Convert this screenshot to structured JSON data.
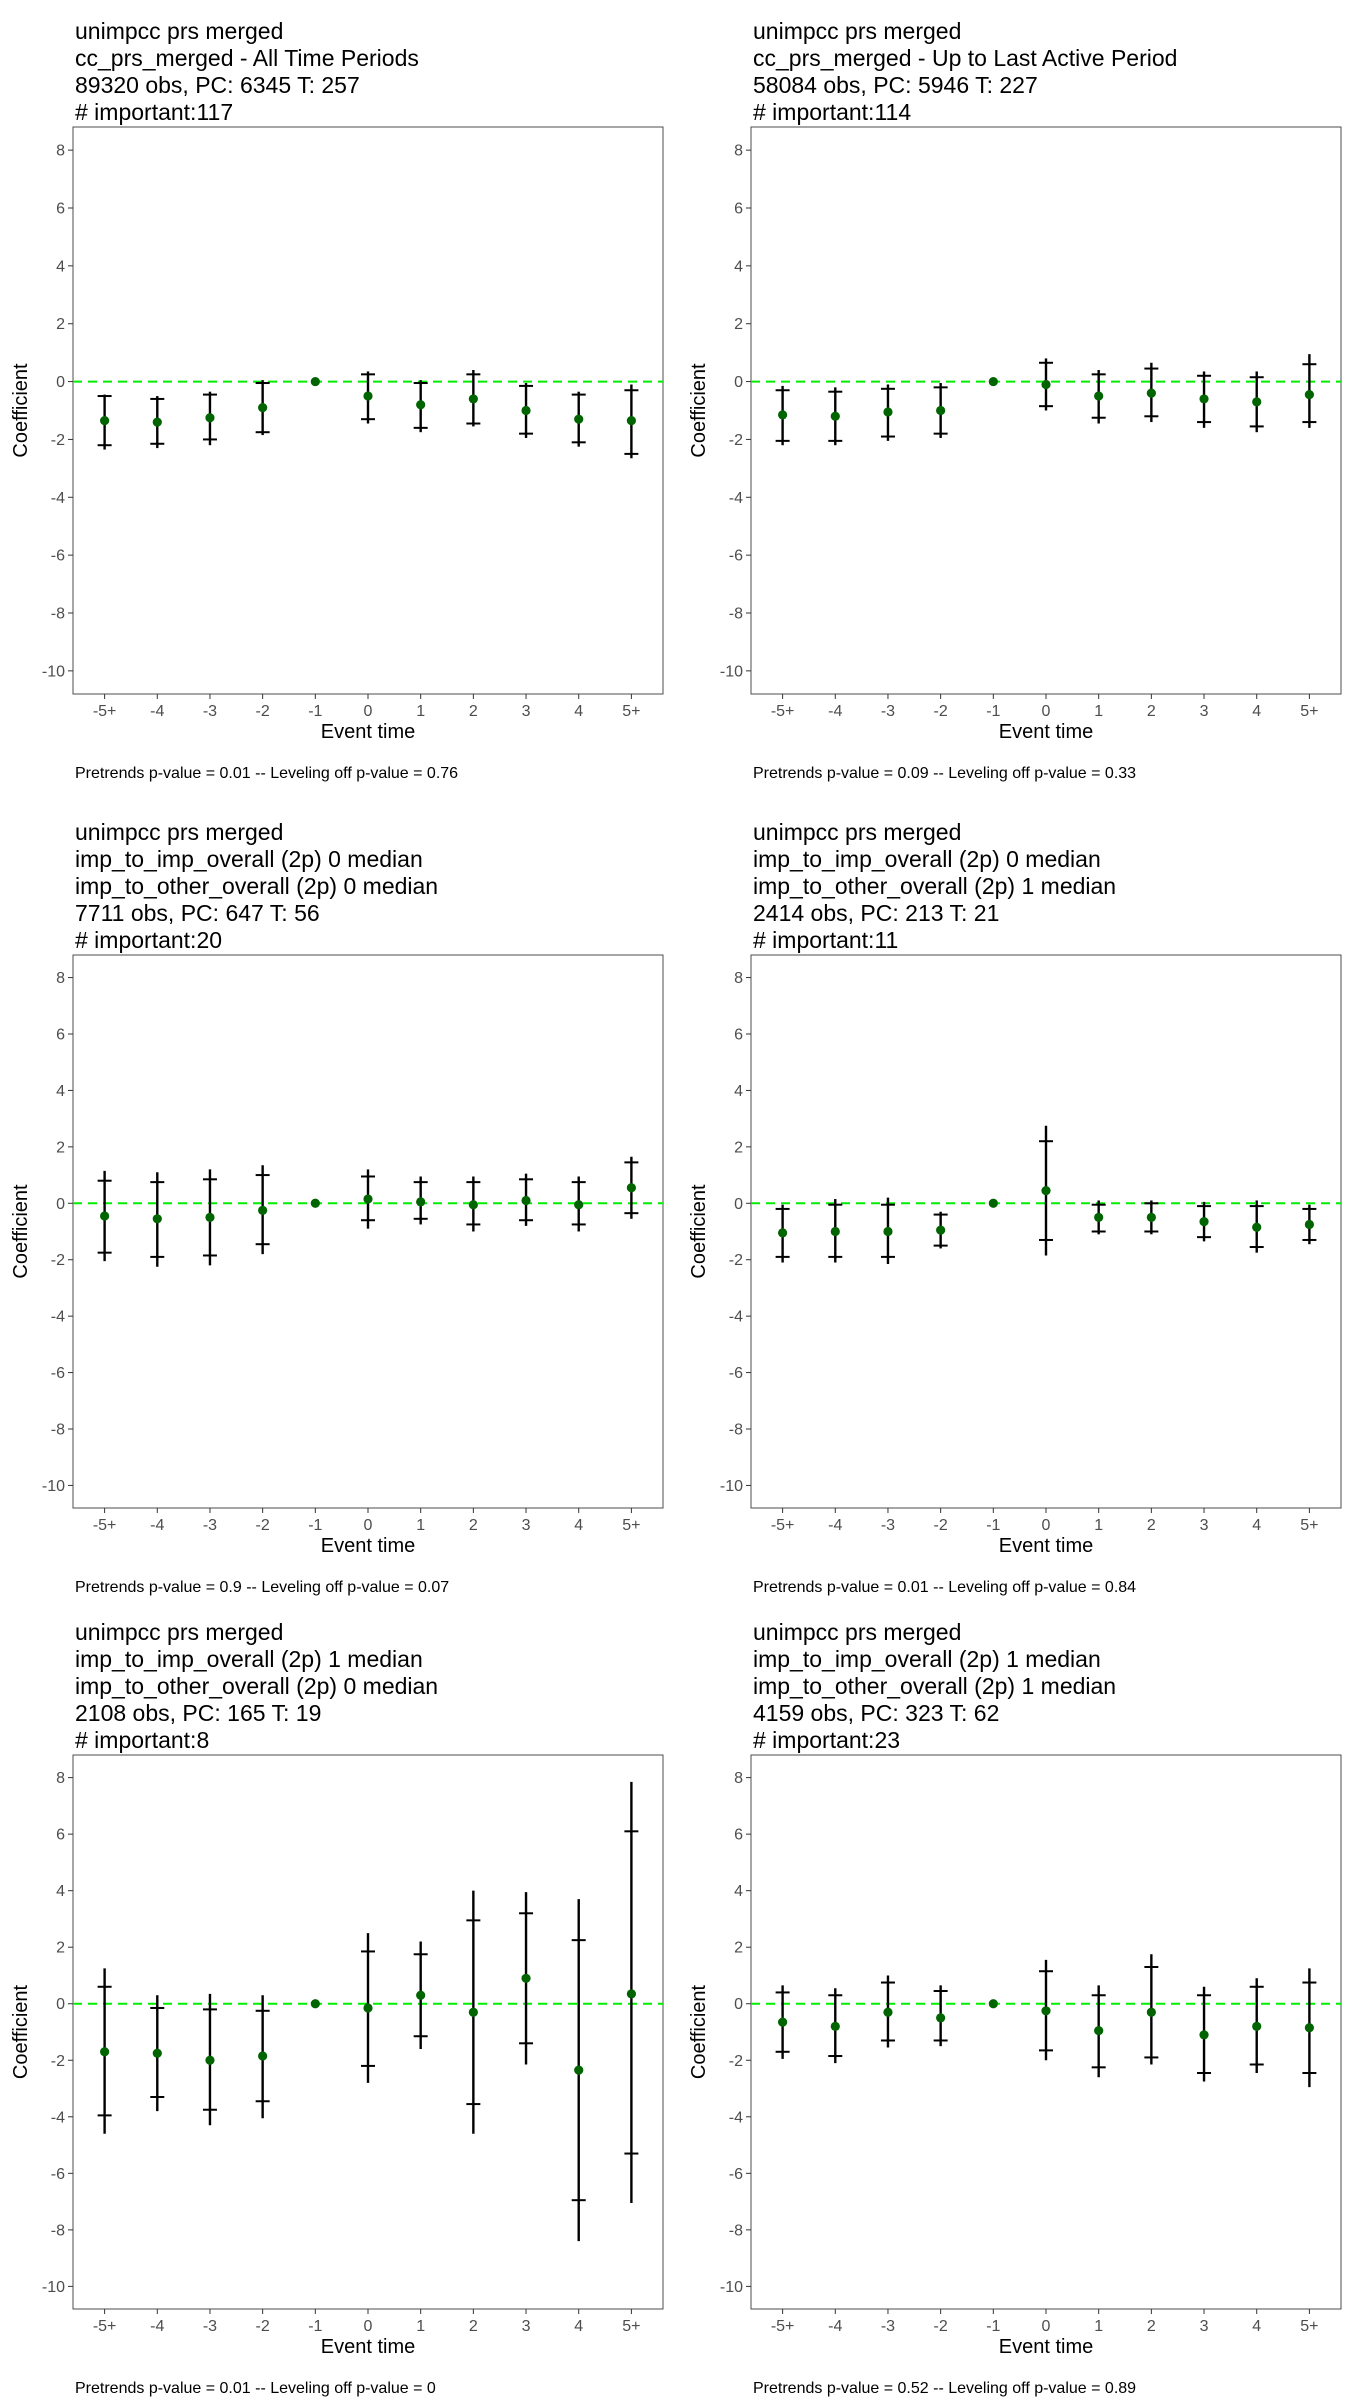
{
  "chart_data": [
    {
      "type": "scatter",
      "title_lines": [
        " unimpcc prs merged",
        "cc_prs_merged - All Time Periods",
        "89320 obs, PC: 6345 T: 257",
        "# important:117"
      ],
      "xlabel": "Event time",
      "ylabel": "Coefficient",
      "caption": "Pretrends p-value = 0.01 -- Leveling off p-value = 0.76",
      "categories": [
        "-5+",
        "-4",
        "-3",
        "-2",
        "-1",
        "0",
        "1",
        "2",
        "3",
        "4",
        "5+"
      ],
      "y_ticks": [
        8,
        6,
        4,
        2,
        0,
        -2,
        -4,
        -6,
        -8,
        -10
      ],
      "ylim": [
        -10.8,
        8.8
      ],
      "reference_line": 0,
      "estimates": [
        -1.35,
        -1.4,
        -1.25,
        -0.9,
        0,
        -0.5,
        -0.8,
        -0.6,
        -1.0,
        -1.3,
        -1.35
      ],
      "ci_inner": [
        [
          -2.2,
          -0.5
        ],
        [
          -2.15,
          -0.6
        ],
        [
          -2.0,
          -0.45
        ],
        [
          -1.75,
          -0.05
        ],
        [
          0,
          0
        ],
        [
          -1.3,
          0.25
        ],
        [
          -1.6,
          -0.05
        ],
        [
          -1.45,
          0.25
        ],
        [
          -1.8,
          -0.15
        ],
        [
          -2.1,
          -0.45
        ],
        [
          -2.5,
          -0.3
        ]
      ],
      "ci_outer": [
        [
          -2.35,
          -0.45
        ],
        [
          -2.3,
          -0.5
        ],
        [
          -2.2,
          -0.35
        ],
        [
          -1.85,
          0.05
        ],
        [
          0,
          0
        ],
        [
          -1.45,
          0.35
        ],
        [
          -1.75,
          0.05
        ],
        [
          -1.55,
          0.4
        ],
        [
          -1.95,
          -0.05
        ],
        [
          -2.25,
          -0.35
        ],
        [
          -2.65,
          -0.1
        ]
      ],
      "point_color": "#006400",
      "line_color": "#00ee00"
    },
    {
      "type": "scatter",
      "title_lines": [
        " unimpcc prs merged",
        "cc_prs_merged - Up to Last Active Period",
        "58084 obs, PC: 5946 T: 227",
        "# important:114"
      ],
      "xlabel": "Event time",
      "ylabel": "Coefficient",
      "caption": "Pretrends p-value = 0.09 -- Leveling off p-value = 0.33",
      "categories": [
        "-5+",
        "-4",
        "-3",
        "-2",
        "-1",
        "0",
        "1",
        "2",
        "3",
        "4",
        "5+"
      ],
      "y_ticks": [
        8,
        6,
        4,
        2,
        0,
        -2,
        -4,
        -6,
        -8,
        -10
      ],
      "ylim": [
        -10.8,
        8.8
      ],
      "reference_line": 0,
      "estimates": [
        -1.15,
        -1.2,
        -1.05,
        -1.0,
        0,
        -0.1,
        -0.5,
        -0.4,
        -0.6,
        -0.7,
        -0.45
      ],
      "ci_inner": [
        [
          -2.05,
          -0.3
        ],
        [
          -2.05,
          -0.35
        ],
        [
          -1.9,
          -0.25
        ],
        [
          -1.8,
          -0.2
        ],
        [
          0,
          0
        ],
        [
          -0.85,
          0.65
        ],
        [
          -1.25,
          0.25
        ],
        [
          -1.2,
          0.45
        ],
        [
          -1.4,
          0.2
        ],
        [
          -1.55,
          0.15
        ],
        [
          -1.4,
          0.6
        ]
      ],
      "ci_outer": [
        [
          -2.2,
          -0.15
        ],
        [
          -2.2,
          -0.2
        ],
        [
          -2.05,
          -0.1
        ],
        [
          -1.95,
          -0.05
        ],
        [
          0,
          0
        ],
        [
          -1.0,
          0.8
        ],
        [
          -1.45,
          0.4
        ],
        [
          -1.4,
          0.65
        ],
        [
          -1.6,
          0.35
        ],
        [
          -1.75,
          0.35
        ],
        [
          -1.6,
          0.95
        ]
      ],
      "point_color": "#006400",
      "line_color": "#00ee00"
    },
    {
      "type": "scatter",
      "title_lines": [
        " unimpcc prs merged",
        "imp_to_imp_overall (2p) 0 median",
        "imp_to_other_overall (2p) 0 median",
        "7711 obs, PC: 647 T: 56",
        "# important:20"
      ],
      "xlabel": "Event time",
      "ylabel": "Coefficient",
      "caption": "Pretrends p-value = 0.9 -- Leveling off p-value = 0.07",
      "categories": [
        "-5+",
        "-4",
        "-3",
        "-2",
        "-1",
        "0",
        "1",
        "2",
        "3",
        "4",
        "5+"
      ],
      "y_ticks": [
        8,
        6,
        4,
        2,
        0,
        -2,
        -4,
        -6,
        -8,
        -10
      ],
      "ylim": [
        -10.8,
        8.8
      ],
      "reference_line": 0,
      "estimates": [
        -0.45,
        -0.55,
        -0.5,
        -0.25,
        0,
        0.15,
        0.05,
        -0.05,
        0.1,
        -0.05,
        0.55
      ],
      "ci_inner": [
        [
          -1.75,
          0.8
        ],
        [
          -1.9,
          0.75
        ],
        [
          -1.85,
          0.85
        ],
        [
          -1.45,
          1.0
        ],
        [
          0,
          0
        ],
        [
          -0.6,
          0.95
        ],
        [
          -0.55,
          0.75
        ],
        [
          -0.75,
          0.75
        ],
        [
          -0.6,
          0.85
        ],
        [
          -0.75,
          0.75
        ],
        [
          -0.35,
          1.45
        ]
      ],
      "ci_outer": [
        [
          -2.05,
          1.15
        ],
        [
          -2.25,
          1.1
        ],
        [
          -2.2,
          1.2
        ],
        [
          -1.8,
          1.35
        ],
        [
          0,
          0
        ],
        [
          -0.9,
          1.2
        ],
        [
          -0.75,
          0.95
        ],
        [
          -1.0,
          0.95
        ],
        [
          -0.8,
          1.05
        ],
        [
          -1.0,
          0.95
        ],
        [
          -0.55,
          1.65
        ]
      ],
      "point_color": "#006400",
      "line_color": "#00ee00"
    },
    {
      "type": "scatter",
      "title_lines": [
        " unimpcc prs merged",
        "imp_to_imp_overall (2p) 0 median",
        "imp_to_other_overall (2p) 1 median",
        "2414 obs, PC: 213 T: 21",
        "# important:11"
      ],
      "xlabel": "Event time",
      "ylabel": "Coefficient",
      "caption": "Pretrends p-value = 0.01 -- Leveling off p-value = 0.84",
      "categories": [
        "-5+",
        "-4",
        "-3",
        "-2",
        "-1",
        "0",
        "1",
        "2",
        "3",
        "4",
        "5+"
      ],
      "y_ticks": [
        8,
        6,
        4,
        2,
        0,
        -2,
        -4,
        -6,
        -8,
        -10
      ],
      "ylim": [
        -10.8,
        8.8
      ],
      "reference_line": 0,
      "estimates": [
        -1.05,
        -1.0,
        -1.0,
        -0.95,
        0,
        0.45,
        -0.5,
        -0.5,
        -0.65,
        -0.85,
        -0.75
      ],
      "ci_inner": [
        [
          -1.9,
          -0.2
        ],
        [
          -1.9,
          -0.05
        ],
        [
          -1.9,
          -0.05
        ],
        [
          -1.5,
          -0.4
        ],
        [
          0,
          0
        ],
        [
          -1.3,
          2.2
        ],
        [
          -1.0,
          -0.05
        ],
        [
          -1.0,
          0.0
        ],
        [
          -1.2,
          -0.1
        ],
        [
          -1.55,
          -0.1
        ],
        [
          -1.3,
          -0.2
        ]
      ],
      "ci_outer": [
        [
          -2.1,
          -0.05
        ],
        [
          -2.1,
          0.15
        ],
        [
          -2.15,
          0.2
        ],
        [
          -1.6,
          -0.3
        ],
        [
          0,
          0
        ],
        [
          -1.85,
          2.75
        ],
        [
          -1.1,
          0.1
        ],
        [
          -1.1,
          0.1
        ],
        [
          -1.35,
          0.05
        ],
        [
          -1.75,
          0.1
        ],
        [
          -1.45,
          -0.05
        ]
      ],
      "point_color": "#006400",
      "line_color": "#00ee00"
    },
    {
      "type": "scatter",
      "title_lines": [
        " unimpcc prs merged",
        "imp_to_imp_overall (2p) 1 median",
        "imp_to_other_overall (2p) 0 median",
        "2108 obs, PC: 165 T: 19",
        "# important:8"
      ],
      "xlabel": "Event time",
      "ylabel": "Coefficient",
      "caption": "Pretrends p-value = 0.01 -- Leveling off p-value = 0",
      "categories": [
        "-5+",
        "-4",
        "-3",
        "-2",
        "-1",
        "0",
        "1",
        "2",
        "3",
        "4",
        "5+"
      ],
      "y_ticks": [
        8,
        6,
        4,
        2,
        0,
        -2,
        -4,
        -6,
        -8,
        -10
      ],
      "ylim": [
        -10.8,
        8.8
      ],
      "reference_line": 0,
      "estimates": [
        -1.7,
        -1.75,
        -2.0,
        -1.85,
        0,
        -0.15,
        0.3,
        -0.3,
        0.9,
        -2.35,
        0.35
      ],
      "ci_inner": [
        [
          -3.95,
          0.6
        ],
        [
          -3.3,
          -0.15
        ],
        [
          -3.75,
          -0.2
        ],
        [
          -3.45,
          -0.25
        ],
        [
          0,
          0
        ],
        [
          -2.2,
          1.85
        ],
        [
          -1.15,
          1.75
        ],
        [
          -3.55,
          2.95
        ],
        [
          -1.4,
          3.2
        ],
        [
          -6.95,
          2.25
        ],
        [
          -5.3,
          6.1
        ]
      ],
      "ci_outer": [
        [
          -4.6,
          1.25
        ],
        [
          -3.8,
          0.3
        ],
        [
          -4.3,
          0.35
        ],
        [
          -4.05,
          0.3
        ],
        [
          0,
          0
        ],
        [
          -2.8,
          2.5
        ],
        [
          -1.6,
          2.2
        ],
        [
          -4.6,
          4.0
        ],
        [
          -2.15,
          3.95
        ],
        [
          -8.4,
          3.7
        ],
        [
          -7.05,
          7.85
        ]
      ],
      "point_color": "#006400",
      "line_color": "#00ee00"
    },
    {
      "type": "scatter",
      "title_lines": [
        " unimpcc prs merged",
        "imp_to_imp_overall (2p) 1 median",
        "imp_to_other_overall (2p) 1 median",
        "4159 obs, PC: 323 T: 62",
        "# important:23"
      ],
      "xlabel": "Event time",
      "ylabel": "Coefficient",
      "caption": "Pretrends p-value = 0.52 -- Leveling off p-value = 0.89",
      "categories": [
        "-5+",
        "-4",
        "-3",
        "-2",
        "-1",
        "0",
        "1",
        "2",
        "3",
        "4",
        "5+"
      ],
      "y_ticks": [
        8,
        6,
        4,
        2,
        0,
        -2,
        -4,
        -6,
        -8,
        -10
      ],
      "ylim": [
        -10.8,
        8.8
      ],
      "reference_line": 0,
      "estimates": [
        -0.65,
        -0.8,
        -0.3,
        -0.5,
        0,
        -0.25,
        -0.95,
        -0.3,
        -1.1,
        -0.8,
        -0.85
      ],
      "ci_inner": [
        [
          -1.7,
          0.4
        ],
        [
          -1.85,
          0.3
        ],
        [
          -1.3,
          0.75
        ],
        [
          -1.3,
          0.45
        ],
        [
          0,
          0
        ],
        [
          -1.65,
          1.15
        ],
        [
          -2.25,
          0.3
        ],
        [
          -1.9,
          1.3
        ],
        [
          -2.45,
          0.3
        ],
        [
          -2.15,
          0.6
        ],
        [
          -2.45,
          0.75
        ]
      ],
      "ci_outer": [
        [
          -1.95,
          0.65
        ],
        [
          -2.1,
          0.55
        ],
        [
          -1.55,
          1.0
        ],
        [
          -1.5,
          0.65
        ],
        [
          0,
          0
        ],
        [
          -2.0,
          1.55
        ],
        [
          -2.6,
          0.65
        ],
        [
          -2.15,
          1.75
        ],
        [
          -2.75,
          0.6
        ],
        [
          -2.45,
          0.9
        ],
        [
          -2.95,
          1.25
        ]
      ],
      "point_color": "#006400",
      "line_color": "#00ee00"
    }
  ]
}
